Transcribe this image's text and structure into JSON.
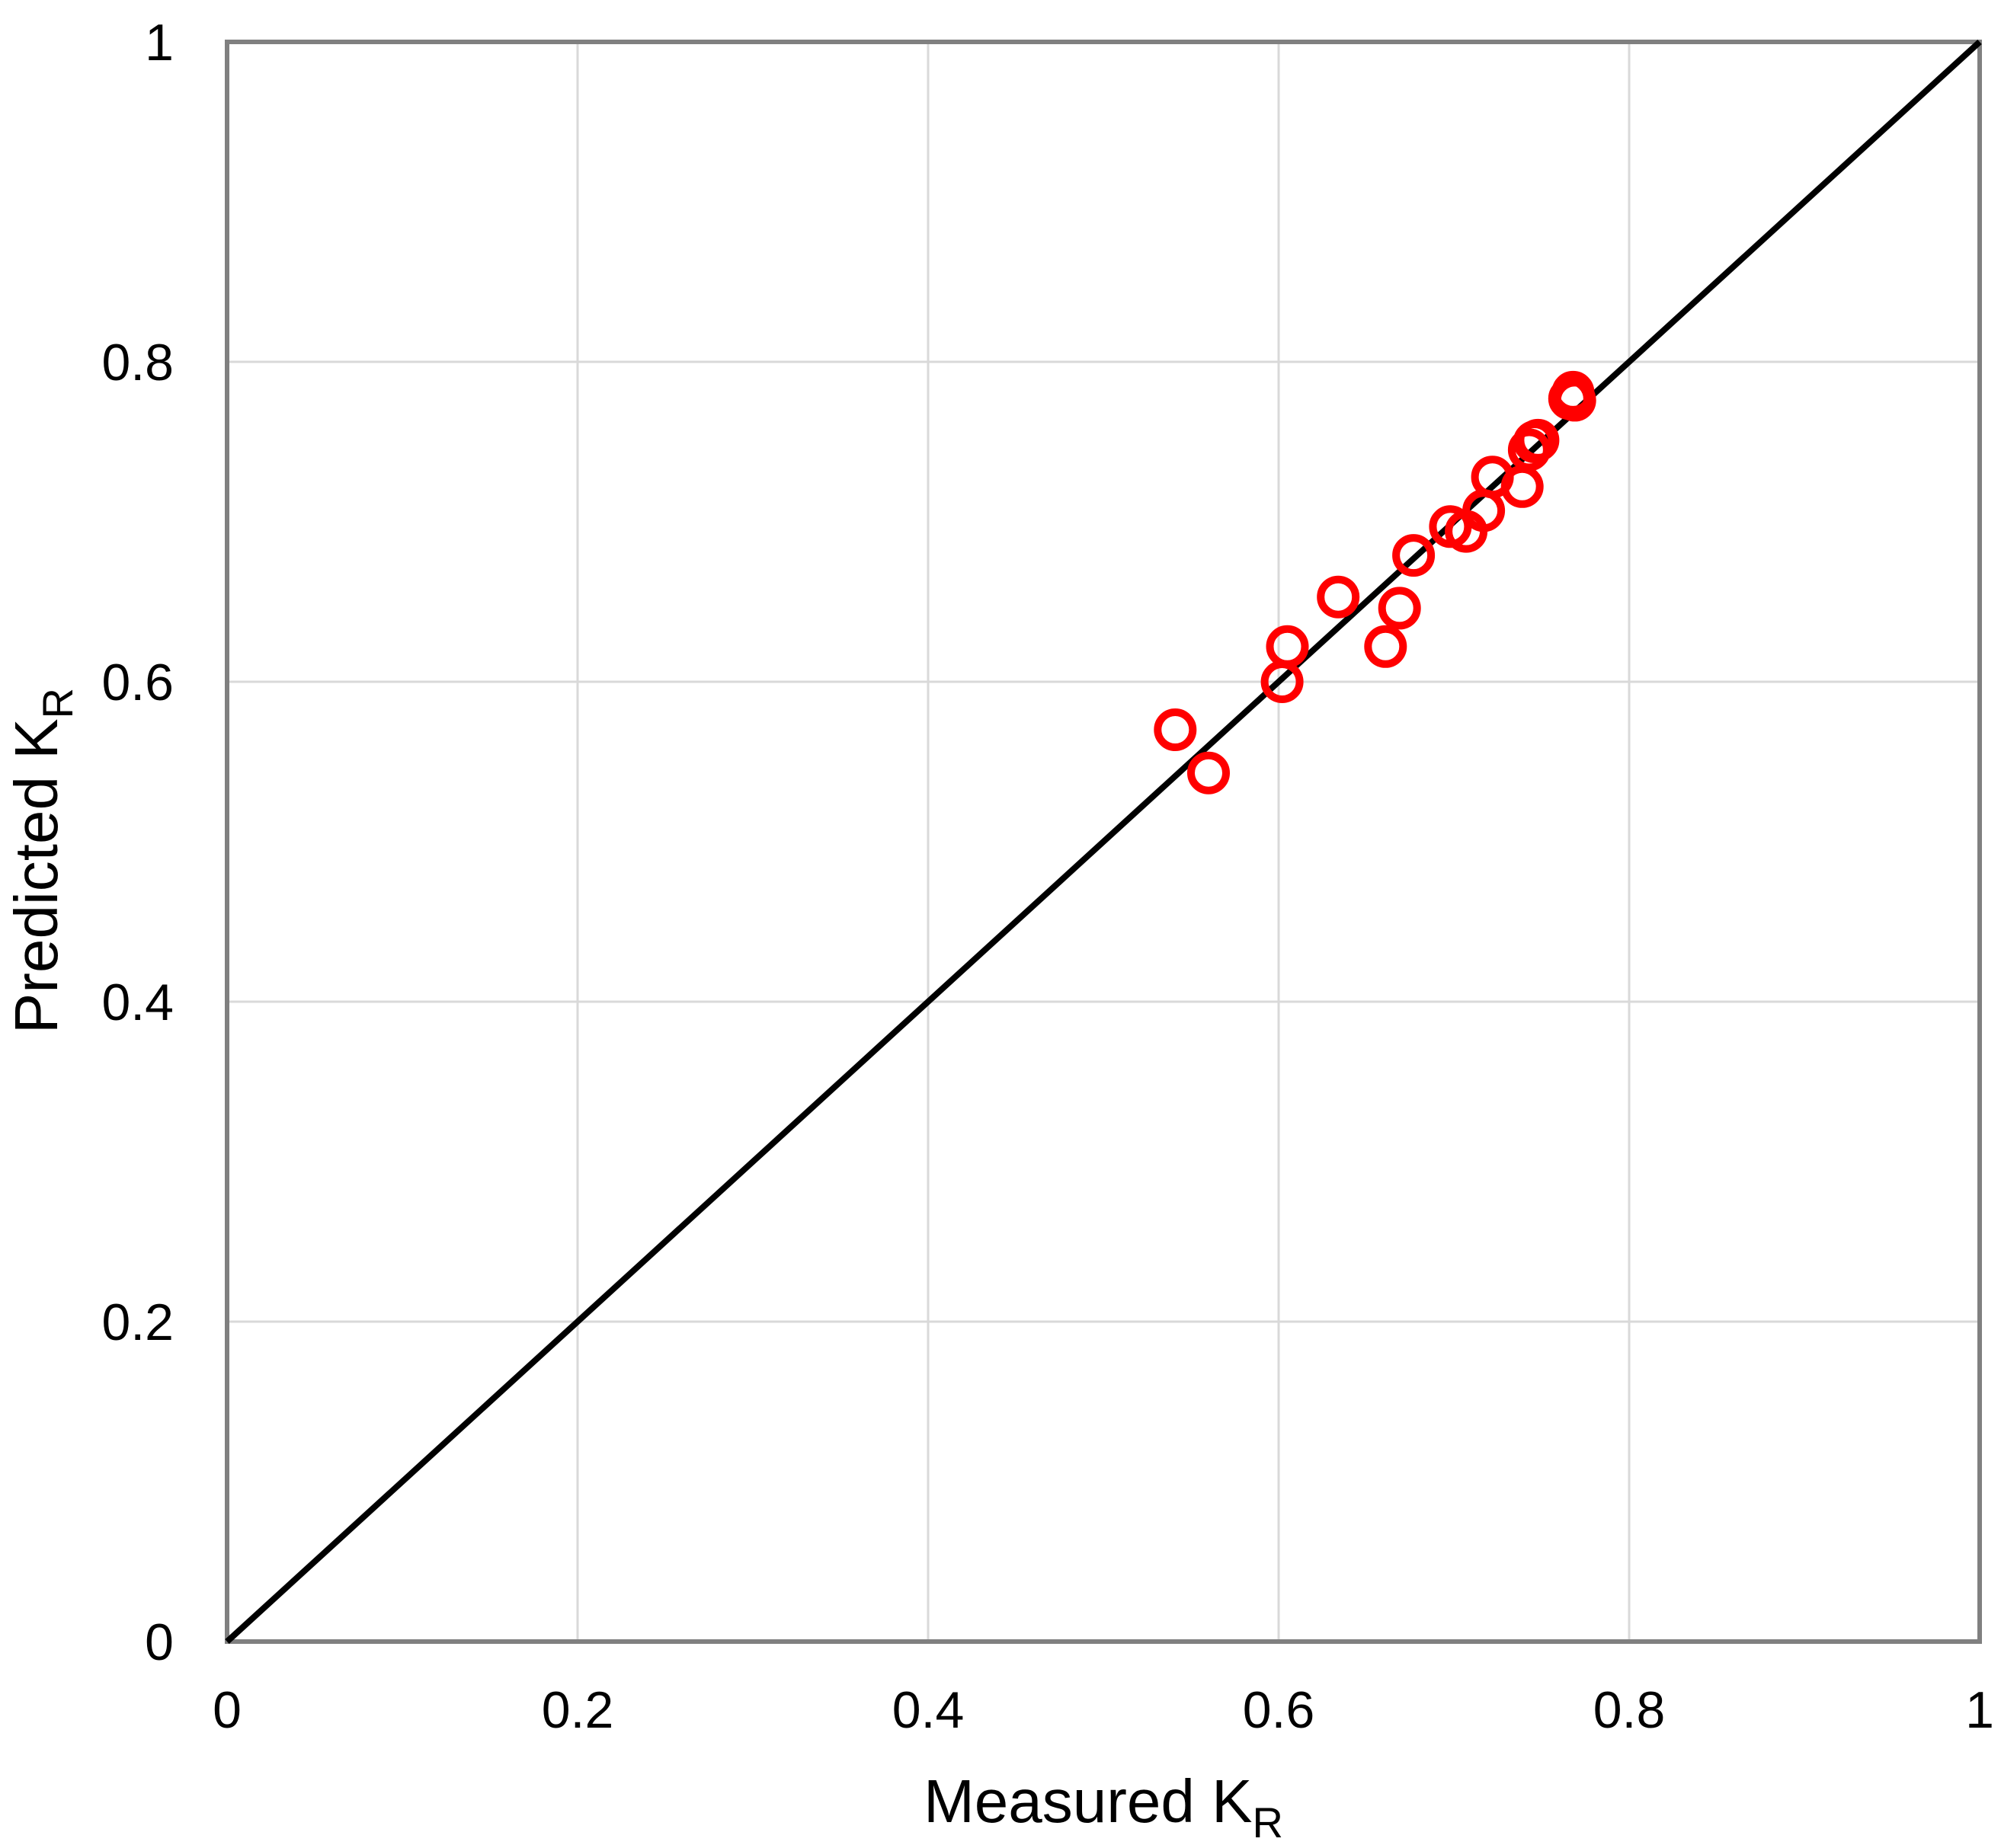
{
  "chart_data": {
    "type": "scatter",
    "xlabel": "Measured K",
    "xlabel_sub": "R",
    "ylabel": "Predicted K",
    "ylabel_sub": "R",
    "xlim": [
      0,
      1
    ],
    "ylim": [
      0,
      1
    ],
    "x_ticks": [
      0,
      0.2,
      0.4,
      0.6,
      0.8,
      1
    ],
    "x_tick_labels": [
      "0",
      "0.2",
      "0.4",
      "0.6",
      "0.8",
      "1"
    ],
    "y_ticks": [
      0,
      0.2,
      0.4,
      0.6,
      0.8,
      1
    ],
    "y_tick_labels": [
      "0",
      "0.2",
      "0.4",
      "0.6",
      "0.8",
      "1"
    ],
    "grid": true,
    "reference_line": {
      "from": [
        0,
        0
      ],
      "to": [
        1,
        1
      ],
      "color": "#000000"
    },
    "marker": {
      "shape": "open-circle",
      "color": "#ff0000"
    },
    "series": [
      {
        "points": [
          [
            0.541,
            0.57
          ],
          [
            0.56,
            0.543
          ],
          [
            0.602,
            0.6
          ],
          [
            0.605,
            0.622
          ],
          [
            0.634,
            0.653
          ],
          [
            0.661,
            0.622
          ],
          [
            0.669,
            0.646
          ],
          [
            0.677,
            0.679
          ],
          [
            0.698,
            0.697
          ],
          [
            0.707,
            0.694
          ],
          [
            0.717,
            0.707
          ],
          [
            0.722,
            0.728
          ],
          [
            0.739,
            0.722
          ],
          [
            0.743,
            0.745
          ],
          [
            0.746,
            0.75
          ],
          [
            0.748,
            0.751
          ],
          [
            0.766,
            0.777
          ],
          [
            0.768,
            0.781
          ],
          [
            0.769,
            0.776
          ]
        ]
      }
    ]
  },
  "colors": {
    "background": "#ffffff",
    "gridline": "#d9d9d9",
    "plot_border": "#808080",
    "reference_line": "#000000",
    "marker": "#ff0000"
  }
}
